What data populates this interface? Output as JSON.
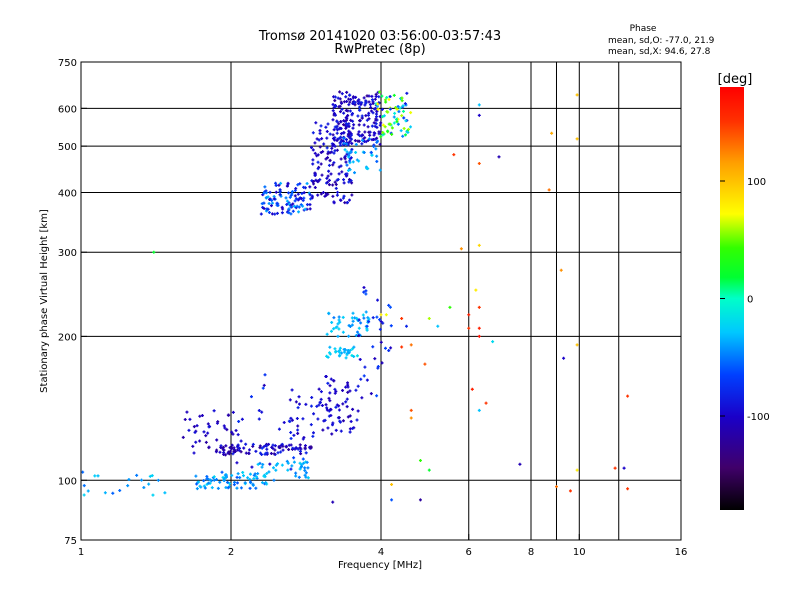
{
  "chart_data": {
    "type": "scatter",
    "title": "Tromsø 20141020 03:56:00-03:57:43",
    "subtitle": "RwPretec (8p)",
    "xlabel": "Frequency [MHz]",
    "ylabel": "Stationary phase Virtual Height [km]",
    "x_scale": "log2",
    "y_scale": "log",
    "xlim": [
      1,
      16
    ],
    "ylim": [
      75,
      750
    ],
    "x_ticks": [
      1,
      2,
      4,
      6,
      8,
      10,
      16
    ],
    "x_tick_labels": [
      "1",
      "2",
      "4",
      "6",
      "8",
      "10",
      "16"
    ],
    "y_ticks": [
      75,
      100,
      200,
      300,
      400,
      500,
      600,
      750
    ],
    "y_tick_labels": [
      "75",
      "100",
      "200",
      "300",
      "400",
      "500",
      "600",
      "750"
    ],
    "grid": true,
    "phase_stats": {
      "title": "Phase",
      "line_o": "mean, sd,O: -77.0, 21.9",
      "line_x": "mean, sd,X:  94.6, 27.8"
    },
    "colorbar": {
      "label": "[deg]",
      "range": [
        -180,
        180
      ],
      "ticks": [
        100,
        0,
        -100
      ],
      "tick_labels": [
        "100",
        "0",
        "-100"
      ],
      "colormap": "rainbow"
    },
    "clusters": [
      {
        "x": [
          2.3,
          2.9
        ],
        "y": [
          360,
          420
        ],
        "phase": [
          -110,
          -30
        ],
        "n": 110
      },
      {
        "x": [
          2.9,
          3.5
        ],
        "y": [
          380,
          560
        ],
        "phase": [
          -120,
          -80
        ],
        "n": 150
      },
      {
        "x": [
          3.2,
          4.0
        ],
        "y": [
          500,
          650
        ],
        "phase": [
          -125,
          -80
        ],
        "n": 200
      },
      {
        "x": [
          3.9,
          4.6
        ],
        "y": [
          520,
          650
        ],
        "phase": [
          -90,
          80
        ],
        "n": 70
      },
      {
        "x": [
          3.3,
          4.0
        ],
        "y": [
          440,
          520
        ],
        "phase": [
          -60,
          -20
        ],
        "n": 40
      },
      {
        "x": [
          1.9,
          2.9
        ],
        "y": [
          113,
          119
        ],
        "phase": [
          -125,
          -80
        ],
        "n": 90
      },
      {
        "x": [
          1.7,
          2.4
        ],
        "y": [
          96,
          104
        ],
        "phase": [
          -60,
          -20
        ],
        "n": 70
      },
      {
        "x": [
          2.2,
          2.9
        ],
        "y": [
          100,
          110
        ],
        "phase": [
          -50,
          -20
        ],
        "n": 40
      },
      {
        "x": [
          1.6,
          2.1
        ],
        "y": [
          114,
          140
        ],
        "phase": [
          -120,
          -90
        ],
        "n": 45
      },
      {
        "x": [
          2.6,
          3.2
        ],
        "y": [
          122,
          150
        ],
        "phase": [
          -110,
          -80
        ],
        "n": 35
      },
      {
        "x": [
          3.0,
          3.6
        ],
        "y": [
          125,
          165
        ],
        "phase": [
          -115,
          -80
        ],
        "n": 60
      },
      {
        "x": [
          3.1,
          3.8
        ],
        "y": [
          200,
          225
        ],
        "phase": [
          -50,
          -20
        ],
        "n": 45
      },
      {
        "x": [
          3.1,
          3.6
        ],
        "y": [
          180,
          190
        ],
        "phase": [
          -40,
          -15
        ],
        "n": 30
      },
      {
        "x": [
          3.6,
          4.2
        ],
        "y": [
          140,
          260
        ],
        "phase": [
          -110,
          -60
        ],
        "n": 35
      },
      {
        "x": [
          1.0,
          1.5
        ],
        "y": [
          93,
          104
        ],
        "phase": [
          -60,
          -20
        ],
        "n": 20
      },
      {
        "x": [
          2.0,
          2.8
        ],
        "y": [
          100,
          175
        ],
        "phase": [
          -110,
          -60
        ],
        "n": 25
      }
    ],
    "scatter_points": [
      {
        "x": 1.4,
        "y": 300,
        "phase": 20
      },
      {
        "x": 6.3,
        "y": 610,
        "phase": -30
      },
      {
        "x": 6.3,
        "y": 580,
        "phase": -100
      },
      {
        "x": 6.9,
        "y": 475,
        "phase": -110
      },
      {
        "x": 6.3,
        "y": 460,
        "phase": 140
      },
      {
        "x": 5.6,
        "y": 480,
        "phase": 150
      },
      {
        "x": 5.8,
        "y": 305,
        "phase": 120
      },
      {
        "x": 6.3,
        "y": 310,
        "phase": 90
      },
      {
        "x": 8.8,
        "y": 532,
        "phase": 110
      },
      {
        "x": 9.9,
        "y": 518,
        "phase": 100
      },
      {
        "x": 9.9,
        "y": 640,
        "phase": 100
      },
      {
        "x": 8.7,
        "y": 405,
        "phase": 130
      },
      {
        "x": 9.2,
        "y": 275,
        "phase": 120
      },
      {
        "x": 6.2,
        "y": 250,
        "phase": 80
      },
      {
        "x": 6.3,
        "y": 230,
        "phase": 150
      },
      {
        "x": 6.3,
        "y": 208,
        "phase": 160
      },
      {
        "x": 6.3,
        "y": 200,
        "phase": 170
      },
      {
        "x": 6.0,
        "y": 222,
        "phase": 160
      },
      {
        "x": 6.0,
        "y": 208,
        "phase": 150
      },
      {
        "x": 5.0,
        "y": 218,
        "phase": 60
      },
      {
        "x": 4.0,
        "y": 222,
        "phase": 80
      },
      {
        "x": 4.1,
        "y": 222,
        "phase": 70
      },
      {
        "x": 4.4,
        "y": 218,
        "phase": 150
      },
      {
        "x": 6.7,
        "y": 195,
        "phase": -20
      },
      {
        "x": 5.5,
        "y": 230,
        "phase": 40
      },
      {
        "x": 9.9,
        "y": 192,
        "phase": 100
      },
      {
        "x": 9.3,
        "y": 180,
        "phase": -100
      },
      {
        "x": 4.6,
        "y": 192,
        "phase": 130
      },
      {
        "x": 4.4,
        "y": 190,
        "phase": 150
      },
      {
        "x": 4.9,
        "y": 175,
        "phase": 140
      },
      {
        "x": 6.1,
        "y": 155,
        "phase": 160
      },
      {
        "x": 6.5,
        "y": 145,
        "phase": 150
      },
      {
        "x": 6.3,
        "y": 140,
        "phase": -30
      },
      {
        "x": 4.6,
        "y": 140,
        "phase": 140
      },
      {
        "x": 4.6,
        "y": 135,
        "phase": 120
      },
      {
        "x": 5.2,
        "y": 210,
        "phase": -30
      },
      {
        "x": 4.5,
        "y": 210,
        "phase": -80
      },
      {
        "x": 12.5,
        "y": 150,
        "phase": 150
      },
      {
        "x": 7.6,
        "y": 108,
        "phase": -110
      },
      {
        "x": 9.9,
        "y": 105,
        "phase": 80
      },
      {
        "x": 9.6,
        "y": 95,
        "phase": 150
      },
      {
        "x": 11.8,
        "y": 106,
        "phase": 150
      },
      {
        "x": 12.3,
        "y": 106,
        "phase": -100
      },
      {
        "x": 12.5,
        "y": 96,
        "phase": 150
      },
      {
        "x": 9.0,
        "y": 97,
        "phase": 130
      },
      {
        "x": 4.8,
        "y": 91,
        "phase": -120
      },
      {
        "x": 4.2,
        "y": 91,
        "phase": -60
      },
      {
        "x": 3.2,
        "y": 90,
        "phase": -110
      },
      {
        "x": 4.2,
        "y": 98,
        "phase": 100
      },
      {
        "x": 4.8,
        "y": 110,
        "phase": 40
      },
      {
        "x": 5.0,
        "y": 105,
        "phase": 20
      }
    ]
  }
}
